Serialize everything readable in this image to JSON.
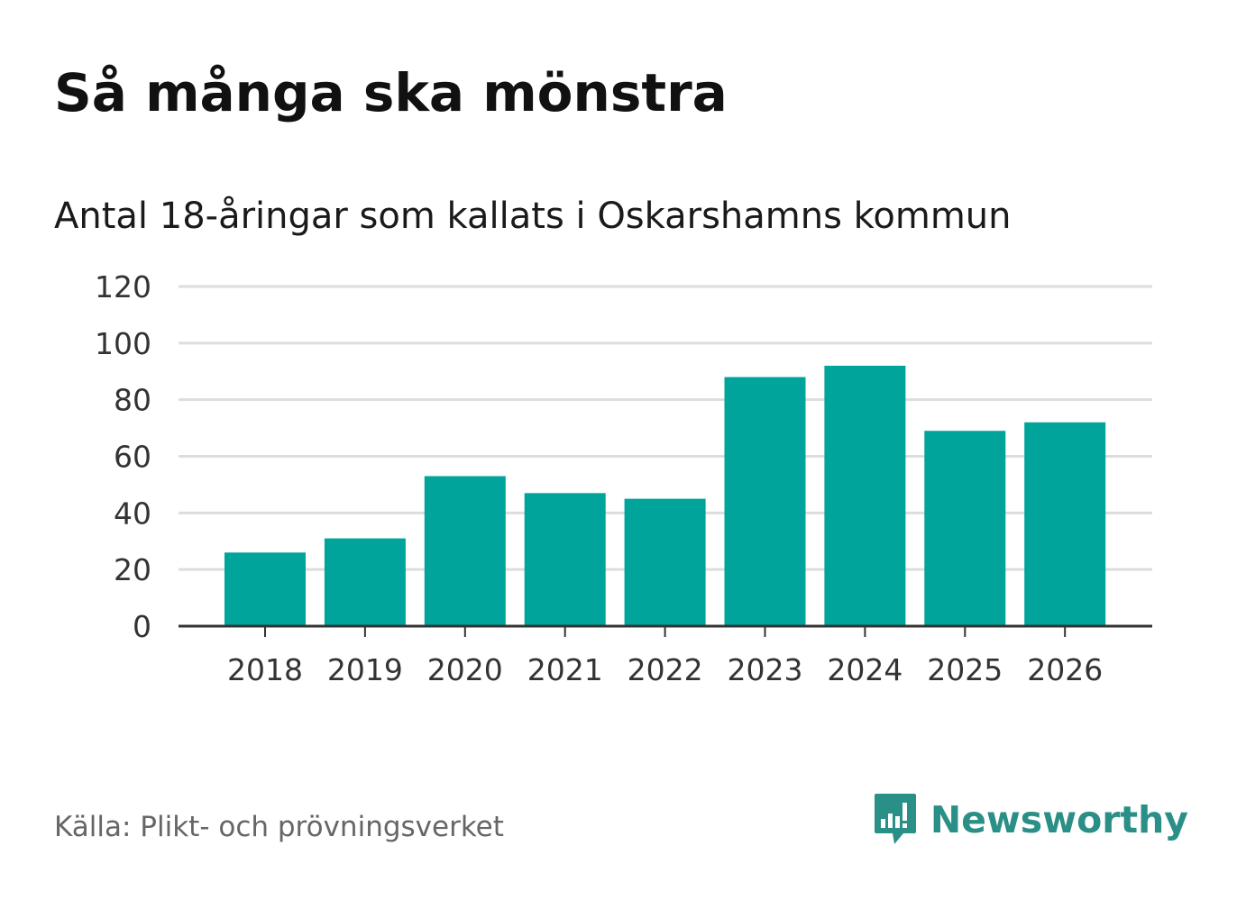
{
  "header": {
    "title": "Så många ska mönstra",
    "subtitle": "Antal 18-åringar som kallats i Oskarshamns kommun"
  },
  "footer": {
    "source": "Källa: Plikt- och prövningsverket",
    "brand": "Newsworthy",
    "brand_icon": "chart-speech-bubble-icon"
  },
  "colors": {
    "bar": "#00a49a",
    "grid": "#dddddd",
    "axis": "#333333",
    "brand": "#2a8f86"
  },
  "chart_data": {
    "type": "bar",
    "title": "Så många ska mönstra",
    "subtitle": "Antal 18-åringar som kallats i Oskarshamns kommun",
    "xlabel": "",
    "ylabel": "",
    "categories": [
      "2018",
      "2019",
      "2020",
      "2021",
      "2022",
      "2023",
      "2024",
      "2025",
      "2026"
    ],
    "values": [
      26,
      31,
      53,
      47,
      45,
      88,
      92,
      69,
      72
    ],
    "ylim": [
      0,
      120
    ],
    "yticks": [
      0,
      20,
      40,
      60,
      80,
      100,
      120
    ],
    "grid": true,
    "legend": "none"
  }
}
